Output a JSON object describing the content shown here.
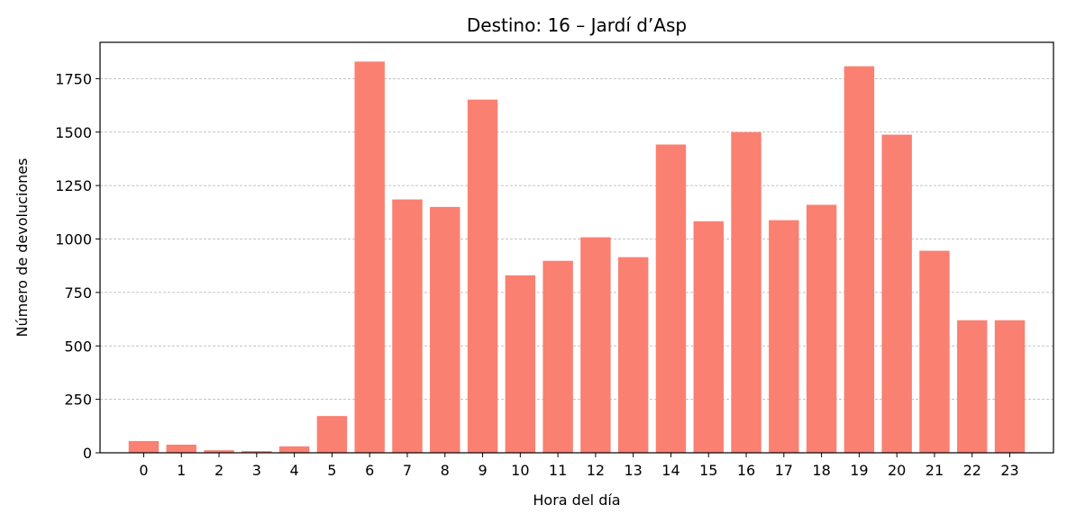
{
  "chart_data": {
    "type": "bar",
    "title": "Destino: 16 – Jardí d’Asp",
    "xlabel": "Hora del día",
    "ylabel": "Número de devoluciones",
    "categories": [
      "0",
      "1",
      "2",
      "3",
      "4",
      "5",
      "6",
      "7",
      "8",
      "9",
      "10",
      "11",
      "12",
      "13",
      "14",
      "15",
      "16",
      "17",
      "18",
      "19",
      "20",
      "21",
      "22",
      "23"
    ],
    "values": [
      55,
      38,
      12,
      8,
      30,
      172,
      1830,
      1185,
      1150,
      1652,
      830,
      898,
      1008,
      915,
      1442,
      1083,
      1500,
      1088,
      1160,
      1808,
      1488,
      945,
      620,
      620
    ],
    "ylim": [
      0,
      1920
    ],
    "yticks": [
      0,
      250,
      500,
      750,
      1000,
      1250,
      1500,
      1750
    ],
    "grid": "y-dashed",
    "bar_color": "#FA8072",
    "grid_color": "#b0b0b0"
  }
}
